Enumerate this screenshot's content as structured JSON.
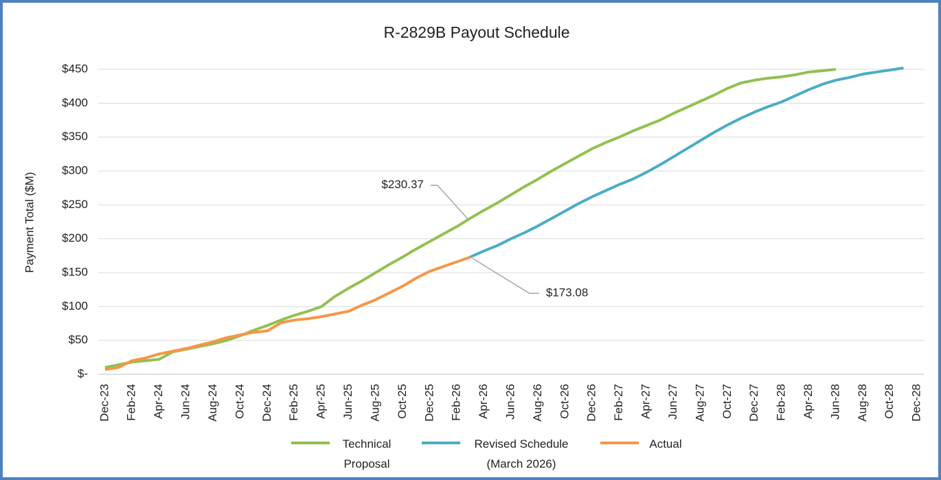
{
  "chart_data": {
    "type": "line",
    "title": "R-2829B Payout Schedule",
    "y_label": "Payment Total ($M)",
    "categories": [
      "Dec-23",
      null,
      "Feb-24",
      null,
      "Apr-24",
      null,
      "Jun-24",
      null,
      "Aug-24",
      null,
      "Oct-24",
      null,
      "Dec-24",
      null,
      "Feb-25",
      null,
      "Apr-25",
      null,
      "Jun-25",
      null,
      "Aug-25",
      null,
      "Oct-25",
      null,
      "Dec-25",
      null,
      "Feb-26",
      null,
      "Apr-26",
      null,
      "Jun-26",
      null,
      "Aug-26",
      null,
      "Oct-26",
      null,
      "Dec-26",
      null,
      "Feb-27",
      null,
      "Apr-27",
      null,
      "Jun-27",
      null,
      "Aug-27",
      null,
      "Oct-27",
      null,
      "Dec-27",
      null,
      "Feb-28",
      null,
      "Apr-28",
      null,
      "Jun-28",
      null,
      "Aug-28",
      null,
      "Oct-28",
      null,
      "Dec-28"
    ],
    "series": [
      {
        "name": "Technical Proposal",
        "color": "#92c050",
        "values": [
          10,
          14,
          18,
          20,
          22,
          33,
          37,
          41,
          45,
          50,
          57,
          65,
          72,
          80,
          87,
          93,
          100,
          115,
          127,
          138,
          150,
          162,
          173,
          185,
          196,
          207,
          218,
          230.37,
          242,
          253,
          265,
          277,
          288,
          300,
          311,
          322,
          333,
          342,
          350,
          359,
          367,
          375,
          385,
          394,
          403,
          412,
          422,
          430,
          434,
          437,
          439,
          442,
          446,
          448,
          450,
          null,
          null,
          null,
          null,
          null,
          null
        ],
        "value_labels": [
          null,
          null,
          null,
          null,
          null,
          null,
          null,
          null,
          null,
          null,
          null,
          null,
          null,
          null,
          null,
          null,
          null,
          null,
          null,
          null,
          null,
          null,
          null,
          null,
          null,
          null,
          null,
          "$230.37",
          null,
          null,
          null,
          null,
          null,
          null,
          null,
          null,
          null,
          null,
          null,
          null,
          null,
          null,
          null,
          null,
          null,
          null,
          null,
          null,
          null,
          null,
          null,
          null,
          null,
          null,
          null,
          null,
          null,
          null,
          null,
          null,
          null
        ]
      },
      {
        "name": "Revised Schedule (March 2026)",
        "color": "#4bacc6",
        "values": [
          null,
          null,
          null,
          null,
          null,
          null,
          null,
          null,
          null,
          null,
          null,
          null,
          null,
          null,
          null,
          null,
          null,
          null,
          null,
          null,
          null,
          null,
          null,
          null,
          null,
          null,
          null,
          173.08,
          182,
          190,
          200,
          209,
          219,
          230,
          241,
          252,
          262,
          271,
          280,
          288,
          298,
          309,
          321,
          333,
          345,
          357,
          368,
          378,
          387,
          395,
          402,
          411,
          420,
          428,
          434,
          438,
          443,
          446,
          449,
          452,
          null
        ]
      },
      {
        "name": "Actual",
        "color": "#f79646",
        "values": [
          7,
          10,
          20,
          24,
          30,
          34,
          38,
          43,
          48,
          54,
          58,
          62,
          64,
          76,
          80,
          82,
          85,
          89,
          93,
          102,
          110,
          120,
          130,
          142,
          152,
          159,
          166,
          173.08,
          null,
          null,
          null,
          null,
          null,
          null,
          null,
          null,
          null,
          null,
          null,
          null,
          null,
          null,
          null,
          null,
          null,
          null,
          null,
          null,
          null,
          null,
          null,
          null,
          null,
          null,
          null,
          null,
          null,
          null,
          null,
          null,
          null
        ],
        "value_labels": [
          null,
          null,
          null,
          null,
          null,
          null,
          null,
          null,
          null,
          null,
          null,
          null,
          null,
          null,
          null,
          null,
          null,
          null,
          null,
          null,
          null,
          null,
          null,
          null,
          null,
          null,
          null,
          "$173.08",
          null,
          null,
          null,
          null,
          null,
          null,
          null,
          null,
          null,
          null,
          null,
          null,
          null,
          null,
          null,
          null,
          null,
          null,
          null,
          null,
          null,
          null,
          null,
          null,
          null,
          null,
          null,
          null,
          null,
          null,
          null,
          null,
          null
        ]
      }
    ],
    "ylim": [
      0,
      450
    ],
    "yticks": [
      {
        "value": 0,
        "label": "$-"
      },
      {
        "value": 50,
        "label": "$50"
      },
      {
        "value": 100,
        "label": "$100"
      },
      {
        "value": 150,
        "label": "$150"
      },
      {
        "value": 200,
        "label": "$200"
      },
      {
        "value": 250,
        "label": "$250"
      },
      {
        "value": 300,
        "label": "$300"
      },
      {
        "value": 350,
        "label": "$350"
      },
      {
        "value": 400,
        "label": "$400"
      },
      {
        "value": 450,
        "label": "$450"
      }
    ],
    "grid": true,
    "legend": "bottom"
  }
}
